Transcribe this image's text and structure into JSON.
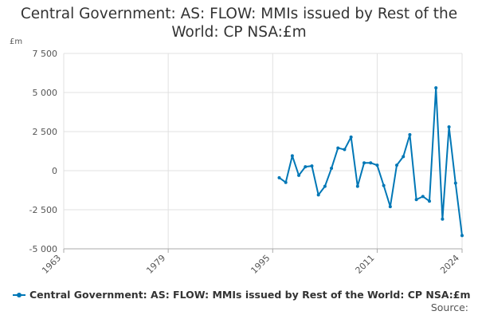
{
  "chart_data": {
    "type": "line",
    "title": "Central Government: AS: FLOW: MMIs issued by Rest of the World: CP NSA:£m",
    "unit_label": "£m",
    "xlim": [
      1963,
      2024
    ],
    "ylim": [
      -5000,
      7500
    ],
    "x_ticks": [
      1963,
      1979,
      1995,
      2011,
      2024
    ],
    "y_ticks": [
      -5000,
      -2500,
      0,
      2500,
      5000,
      7500
    ],
    "y_tick_labels": [
      "-5 000",
      "-2 500",
      "0",
      "2 500",
      "5 000",
      "7 500"
    ],
    "grid": true,
    "legend_position": "bottom",
    "series": [
      {
        "name": "Central Government: AS: FLOW: MMIs issued by Rest of the World: CP NSA:£m",
        "color": "#0077b6",
        "x": [
          1996,
          1997,
          1998,
          1999,
          2000,
          2001,
          2002,
          2003,
          2004,
          2005,
          2006,
          2007,
          2008,
          2009,
          2010,
          2011,
          2012,
          2013,
          2014,
          2015,
          2016,
          2017,
          2018,
          2019,
          2020,
          2021,
          2022,
          2023,
          2024
        ],
        "values": [
          -450,
          -750,
          950,
          -300,
          250,
          300,
          -1550,
          -1000,
          150,
          1450,
          1350,
          2150,
          -1000,
          500,
          500,
          350,
          -950,
          -2300,
          350,
          900,
          2300,
          -1850,
          -1650,
          -1950,
          5300,
          -3100,
          2800,
          -800,
          -4150
        ]
      }
    ]
  },
  "source_label": "Source:"
}
